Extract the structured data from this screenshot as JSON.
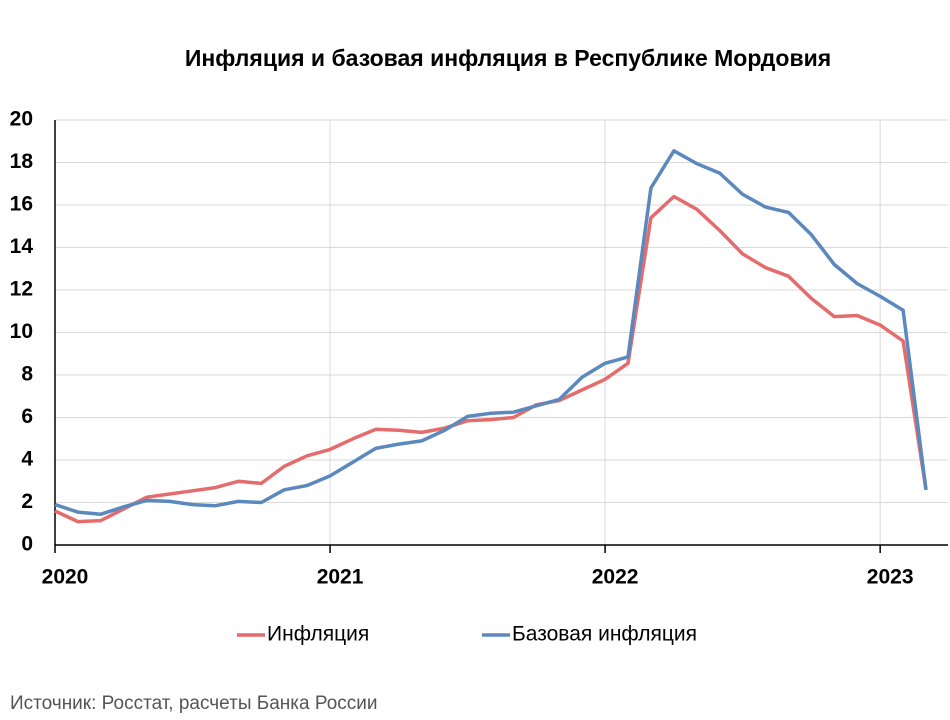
{
  "chart_data": {
    "type": "line",
    "title": "Инфляция и базовая инфляция в Республике Мордовия",
    "categories": [
      "2020",
      null,
      null,
      null,
      null,
      null,
      null,
      null,
      null,
      null,
      null,
      null,
      "2021",
      null,
      null,
      null,
      null,
      null,
      null,
      null,
      null,
      null,
      null,
      null,
      "2022",
      null,
      null,
      null,
      null,
      null,
      null,
      null,
      null,
      null,
      null,
      null,
      "2023",
      null,
      null
    ],
    "series": [
      {
        "name": "Инфляция",
        "color": "#e46c6c",
        "values": [
          1.6,
          1.1,
          1.15,
          1.7,
          2.25,
          2.4,
          2.55,
          2.7,
          3.0,
          2.9,
          3.7,
          4.2,
          4.5,
          5.0,
          5.45,
          5.4,
          5.3,
          5.5,
          5.85,
          5.9,
          6.0,
          6.6,
          6.8,
          7.3,
          7.8,
          8.55,
          15.4,
          16.4,
          15.8,
          14.8,
          13.7,
          13.05,
          12.65,
          11.6,
          10.75,
          10.8,
          10.35,
          9.6,
          2.6
        ]
      },
      {
        "name": "Базовая инфляция",
        "color": "#5b88bd",
        "values": [
          1.9,
          1.55,
          1.45,
          1.8,
          2.1,
          2.05,
          1.9,
          1.85,
          2.05,
          2.0,
          2.6,
          2.8,
          3.25,
          3.9,
          4.55,
          4.75,
          4.9,
          5.4,
          6.05,
          6.2,
          6.25,
          6.55,
          6.85,
          7.9,
          8.55,
          8.85,
          16.8,
          18.55,
          17.95,
          17.5,
          16.5,
          15.9,
          15.65,
          14.6,
          13.2,
          12.3,
          11.7,
          11.05,
          2.6
        ]
      }
    ],
    "ylim": [
      0,
      20
    ],
    "yticks": [
      0,
      2,
      4,
      6,
      8,
      10,
      12,
      14,
      16,
      18,
      20
    ],
    "grid": true,
    "legend": "bottom",
    "source": "Источник: Росстат, расчеты Банка России"
  }
}
